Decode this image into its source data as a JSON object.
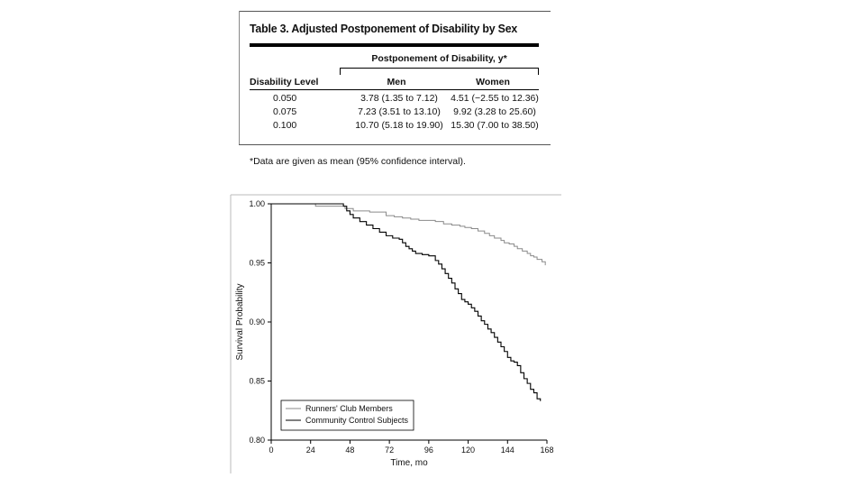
{
  "table": {
    "title": "Table 3. Adjusted Postponement of Disability by Sex",
    "spanner": "Postponement of Disability, y*",
    "columns": [
      "Disability Level",
      "Men",
      "Women"
    ],
    "rows": [
      {
        "level": "0.050",
        "men": "3.78 (1.35 to 7.12)",
        "women": "4.51 (−2.55 to 12.36)"
      },
      {
        "level": "0.075",
        "men": "7.23 (3.51 to 13.10)",
        "women": "9.92 (3.28 to 25.60)"
      },
      {
        "level": "0.100",
        "men": "10.70 (5.18 to 19.90)",
        "women": "15.30 (7.00 to 38.50)"
      }
    ],
    "footnote": "*Data are given as mean (95% confidence interval)."
  },
  "chart_data": {
    "type": "line",
    "title": "",
    "xlabel": "Time, mo",
    "ylabel": "Survival Probability",
    "xlim": [
      0,
      168
    ],
    "ylim": [
      0.8,
      1.0
    ],
    "xticks": [
      0,
      24,
      48,
      72,
      96,
      120,
      144,
      168
    ],
    "yticks": [
      "1.00",
      "0.95",
      "0.90",
      "0.85",
      "0.80"
    ],
    "legend_position": "bottom-left",
    "series": [
      {
        "name": "Runners' Club Members",
        "color": "#8a8a8a",
        "x": [
          0,
          25,
          27,
          40,
          45,
          50,
          60,
          70,
          75,
          80,
          85,
          90,
          95,
          100,
          105,
          110,
          115,
          118,
          122,
          126,
          130,
          133,
          136,
          140,
          142,
          145,
          148,
          150,
          153,
          156,
          158,
          160,
          162,
          163,
          165,
          167
        ],
        "y": [
          1.0,
          1.0,
          0.998,
          0.998,
          0.996,
          0.994,
          0.993,
          0.99,
          0.989,
          0.988,
          0.987,
          0.986,
          0.986,
          0.985,
          0.983,
          0.982,
          0.981,
          0.98,
          0.979,
          0.977,
          0.975,
          0.973,
          0.971,
          0.969,
          0.967,
          0.966,
          0.964,
          0.962,
          0.96,
          0.958,
          0.956,
          0.955,
          0.953,
          0.953,
          0.951,
          0.948
        ]
      },
      {
        "name": "Community Control Subjects",
        "color": "#000000",
        "x": [
          0,
          40,
          44,
          46,
          48,
          50,
          54,
          58,
          62,
          66,
          70,
          74,
          78,
          80,
          82,
          84,
          86,
          88,
          92,
          96,
          100,
          102,
          104,
          106,
          108,
          110,
          112,
          114,
          116,
          118,
          120,
          122,
          124,
          126,
          128,
          130,
          132,
          134,
          136,
          138,
          140,
          142,
          144,
          146,
          148,
          150,
          152,
          154,
          156,
          158,
          160,
          162,
          164
        ],
        "y": [
          1.0,
          1.0,
          0.998,
          0.994,
          0.991,
          0.988,
          0.985,
          0.982,
          0.979,
          0.976,
          0.973,
          0.971,
          0.97,
          0.967,
          0.964,
          0.962,
          0.96,
          0.958,
          0.957,
          0.956,
          0.952,
          0.949,
          0.945,
          0.941,
          0.937,
          0.933,
          0.928,
          0.924,
          0.919,
          0.917,
          0.915,
          0.912,
          0.909,
          0.905,
          0.901,
          0.898,
          0.894,
          0.891,
          0.887,
          0.883,
          0.879,
          0.875,
          0.87,
          0.867,
          0.866,
          0.863,
          0.857,
          0.852,
          0.848,
          0.843,
          0.84,
          0.835,
          0.833
        ]
      }
    ]
  }
}
